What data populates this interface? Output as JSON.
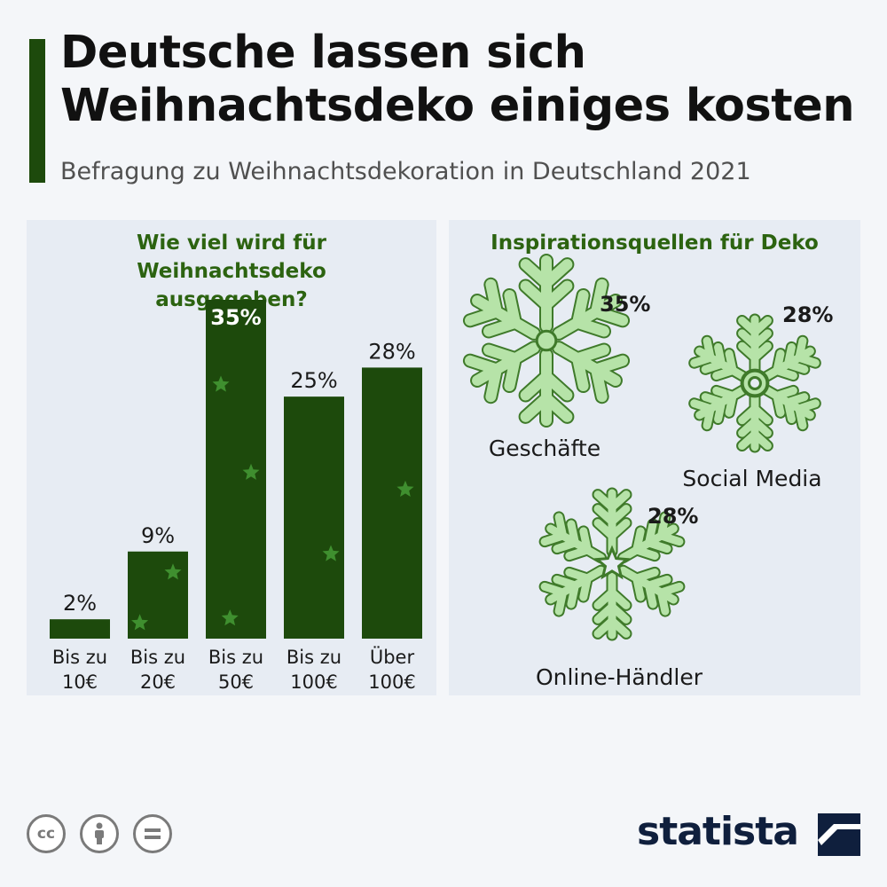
{
  "header": {
    "title": "Deutsche lassen sich Weihnachtsdeko einiges kosten",
    "subtitle": "Befragung zu Weihnachtsdekoration in Deutschland 2021"
  },
  "left_panel": {
    "title": "Wie viel wird für Weihnachtsdeko ausgegeben?"
  },
  "right_panel": {
    "title": "Inspirationsquellen für Deko"
  },
  "chart_data": [
    {
      "type": "bar",
      "title": "Wie viel wird für Weihnachtsdeko ausgegeben?",
      "categories": [
        [
          "Bis zu",
          "10€"
        ],
        [
          "Bis zu",
          "20€"
        ],
        [
          "Bis zu",
          "50€"
        ],
        [
          "Bis zu",
          "100€"
        ],
        [
          "Über",
          "100€"
        ]
      ],
      "values": [
        2,
        9,
        35,
        25,
        28
      ],
      "value_labels": [
        "2%",
        "9%",
        "35%",
        "25%",
        "28%"
      ],
      "unit": "%",
      "ylim": [
        0,
        35
      ],
      "grid": false,
      "bar_color": "#1d4a0c",
      "star_color": "#3f8f2f"
    },
    {
      "type": "pictogram",
      "title": "Inspirationsquellen für Deko",
      "items": [
        {
          "label": "Geschäfte",
          "value": 35,
          "value_label": "35%"
        },
        {
          "label": "Social Media",
          "value": 28,
          "value_label": "28%"
        },
        {
          "label": "Online-Händler",
          "value": 28,
          "value_label": "28%"
        }
      ],
      "icon": "snowflake-icon",
      "icon_fill": "#b6e3a8",
      "icon_stroke": "#3f7a2a"
    }
  ],
  "footer": {
    "logo_text": "statista",
    "license_icons": [
      "cc",
      "by",
      "="
    ]
  }
}
